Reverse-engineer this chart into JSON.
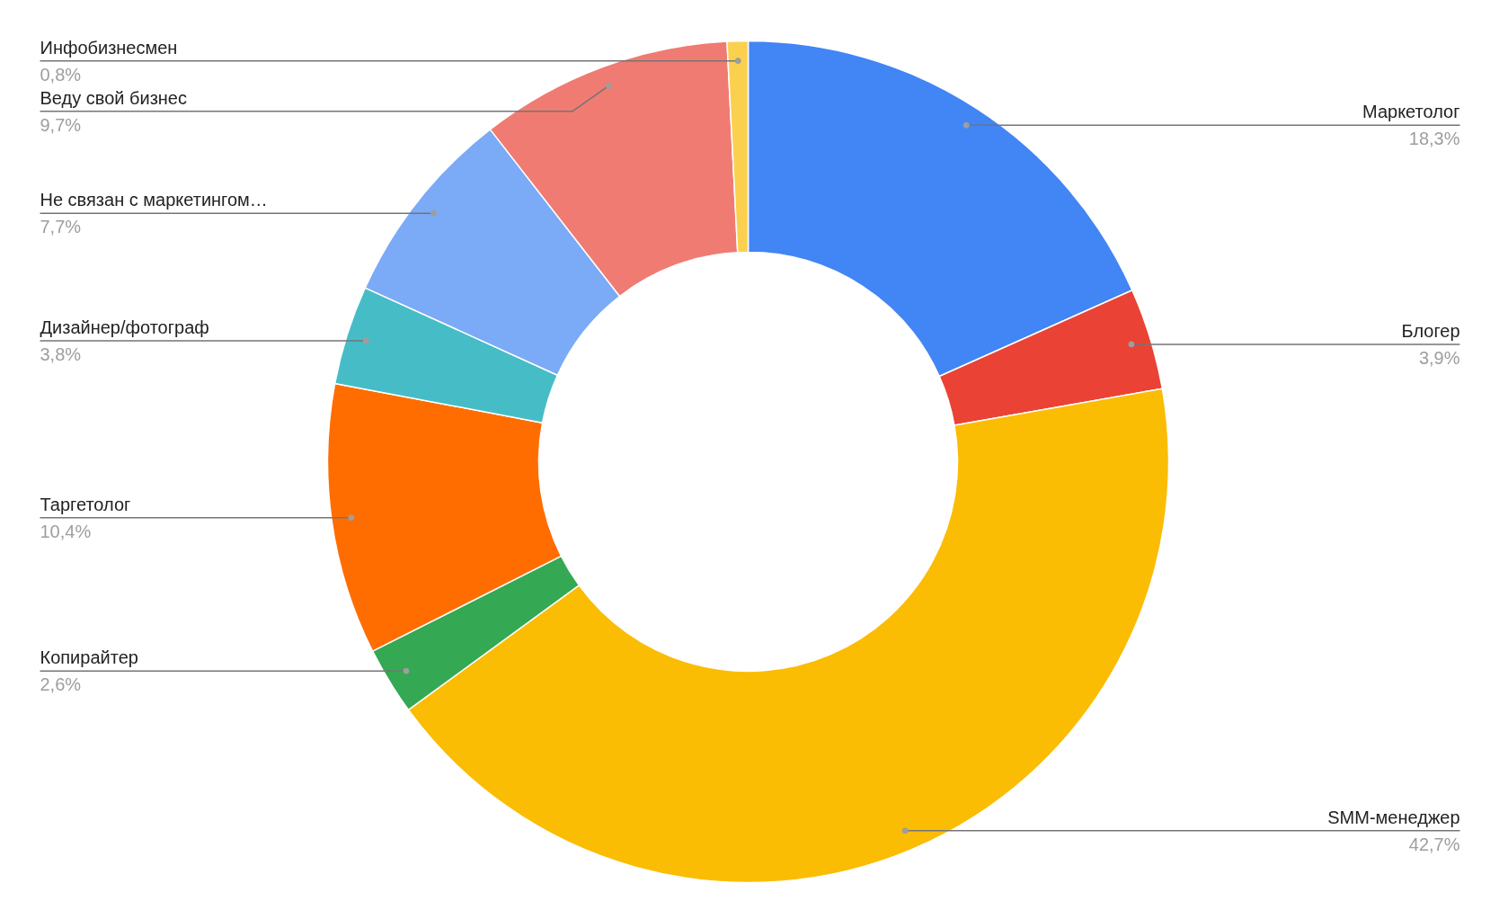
{
  "chart_data": {
    "type": "donut",
    "categories": [
      "Маркетолог",
      "Блогер",
      "SMM-менеджер",
      "Копирайтер",
      "Таргетолог",
      "Дизайнер/фотограф",
      "Не связан с маркетингом…",
      "Веду свой бизнес",
      "Инфобизнесмен"
    ],
    "values": [
      18.3,
      3.9,
      42.7,
      2.6,
      10.4,
      3.8,
      7.7,
      9.7,
      0.8
    ],
    "value_labels": [
      "18,3%",
      "3,9%",
      "42,7%",
      "2,6%",
      "10,4%",
      "3,8%",
      "7,7%",
      "9,7%",
      "0,8%"
    ],
    "colors": [
      "#4285f4",
      "#ea4335",
      "#fbbc04",
      "#34a853",
      "#ff6d01",
      "#46bdc6",
      "#7baaf7",
      "#f07b72",
      "#fcd04f"
    ],
    "legend": false
  }
}
